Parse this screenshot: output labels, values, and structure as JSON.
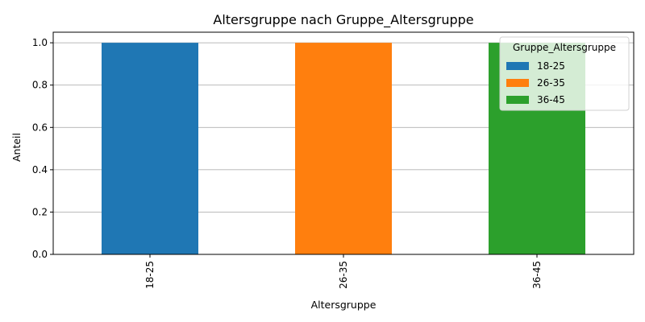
{
  "chart_data": {
    "type": "bar",
    "stacked": true,
    "title": "Altersgruppe nach Gruppe_Altersgruppe",
    "xlabel": "Altersgruppe",
    "ylabel": "Anteil",
    "categories": [
      "18-25",
      "26-35",
      "36-45"
    ],
    "series": [
      {
        "name": "18-25",
        "color": "#1f77b4",
        "values": [
          1.0,
          0.0,
          0.0
        ]
      },
      {
        "name": "26-35",
        "color": "#ff7f0e",
        "values": [
          0.0,
          1.0,
          0.0
        ]
      },
      {
        "name": "36-45",
        "color": "#2ca02c",
        "values": [
          0.0,
          0.0,
          1.0
        ]
      }
    ],
    "ylim": [
      0,
      1.05
    ],
    "yticks": [
      "0.0",
      "0.2",
      "0.4",
      "0.6",
      "0.8",
      "1.0"
    ],
    "grid": "y-axis",
    "legend": {
      "title": "Gruppe_Altersgruppe",
      "placement": "top-right"
    }
  }
}
